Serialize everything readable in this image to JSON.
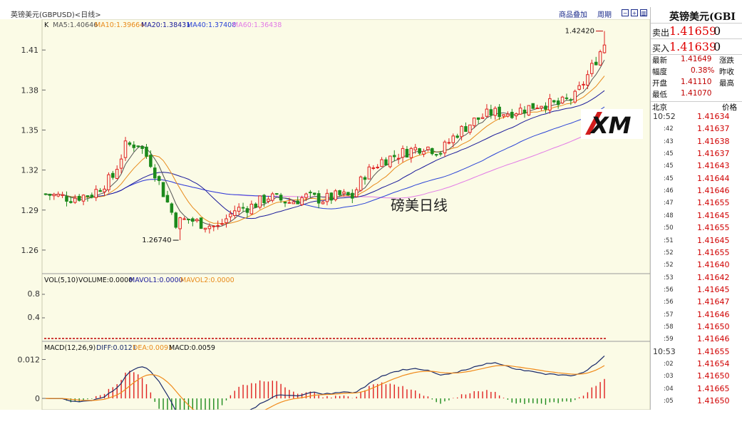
{
  "header": {
    "title": "英镑美元(GBPUSD)<日线>",
    "link_add": "商品叠加",
    "link_period": "周期"
  },
  "panel": {
    "title": "英镑美元(GBI",
    "sell_label": "卖出",
    "sell_price": "1.41659",
    "sell_vol": "0",
    "buy_label": "买入",
    "buy_price": "1.41639",
    "buy_vol": "0",
    "stats": [
      {
        "k": "最新",
        "v": "1.41649",
        "k2": "涨跌"
      },
      {
        "k": "幅度",
        "v": "0.38%",
        "k2": "昨收"
      },
      {
        "k": "开盘",
        "v": "1.41110",
        "k2": "最高"
      },
      {
        "k": "最低",
        "v": "1.41070",
        "k2": ""
      }
    ],
    "col_time": "北京",
    "col_price": "价格",
    "ticks": [
      {
        "t": "10:52",
        "p": "1.41634"
      },
      {
        "t": ":42",
        "p": "1.41637"
      },
      {
        "t": ":43",
        "p": "1.41638"
      },
      {
        "t": ":45",
        "p": "1.41637"
      },
      {
        "t": ":45",
        "p": "1.41643"
      },
      {
        "t": ":45",
        "p": "1.41644"
      },
      {
        "t": ":46",
        "p": "1.41646"
      },
      {
        "t": ":47",
        "p": "1.41655"
      },
      {
        "t": ":48",
        "p": "1.41645"
      },
      {
        "t": ":50",
        "p": "1.41655"
      },
      {
        "t": ":51",
        "p": "1.41645"
      },
      {
        "t": ":52",
        "p": "1.41655"
      },
      {
        "t": ":52",
        "p": "1.41640"
      },
      {
        "t": ":53",
        "p": "1.41642"
      },
      {
        "t": ":56",
        "p": "1.41645"
      },
      {
        "t": ":56",
        "p": "1.41647"
      },
      {
        "t": ":57",
        "p": "1.41646"
      },
      {
        "t": ":58",
        "p": "1.41650"
      },
      {
        "t": ":59",
        "p": "1.41646"
      },
      {
        "t": "10:53",
        "p": "1.41655"
      },
      {
        "t": ":02",
        "p": "1.41654"
      },
      {
        "t": ":03",
        "p": "1.41650"
      },
      {
        "t": ":04",
        "p": "1.41665"
      },
      {
        "t": ":05",
        "p": "1.41650"
      }
    ]
  },
  "chart_data": {
    "type": "candlestick",
    "watermark": "磅美日线",
    "logo_text": "XM",
    "price_panel": {
      "ma_header": {
        "k": "K",
        "ma5": "MA5:1.40646",
        "ma10": "MA10:1.39664",
        "ma20": "MA20:1.38431",
        "ma40": "MA40:1.37408",
        "ma60": "MA60:1.36438"
      },
      "yticks": [
        "1.41",
        "1.38",
        "1.35",
        "1.32",
        "1.29",
        "1.26"
      ],
      "ytick_values": [
        1.41,
        1.38,
        1.35,
        1.32,
        1.29,
        1.26
      ],
      "ylim": [
        1.245,
        1.432
      ],
      "annotation_high": "1.42420",
      "annotation_low": "1.26740",
      "high_index": 133,
      "low_index": 32,
      "anchors": [
        [
          0,
          1.302
        ],
        [
          6,
          1.299
        ],
        [
          11,
          1.302
        ],
        [
          16,
          1.315
        ],
        [
          19,
          1.338
        ],
        [
          22,
          1.34
        ],
        [
          25,
          1.326
        ],
        [
          28,
          1.303
        ],
        [
          31,
          1.281
        ],
        [
          34,
          1.283
        ],
        [
          37,
          1.28
        ],
        [
          41,
          1.277
        ],
        [
          45,
          1.29
        ],
        [
          49,
          1.293
        ],
        [
          53,
          1.3
        ],
        [
          58,
          1.296
        ],
        [
          62,
          1.3
        ],
        [
          66,
          1.298
        ],
        [
          70,
          1.301
        ],
        [
          73,
          1.3
        ],
        [
          76,
          1.317
        ],
        [
          80,
          1.327
        ],
        [
          85,
          1.333
        ],
        [
          90,
          1.338
        ],
        [
          94,
          1.334
        ],
        [
          98,
          1.348
        ],
        [
          102,
          1.357
        ],
        [
          106,
          1.363
        ],
        [
          110,
          1.363
        ],
        [
          114,
          1.366
        ],
        [
          118,
          1.37
        ],
        [
          122,
          1.369
        ],
        [
          126,
          1.375
        ],
        [
          129,
          1.391
        ],
        [
          133,
          1.415
        ]
      ],
      "ma_colors": {
        "ma5": "#555555",
        "ma10": "#e88a1a",
        "ma20": "#1a1a9a",
        "ma40": "#2b44d6",
        "ma60": "#e27ae6"
      }
    },
    "volume_panel": {
      "label": "VOL(5,10)",
      "volume": "VOLUME:0.0000",
      "mavol1": "MAVOL1:0.0000",
      "mavol2": "MAVOL2:0.0000",
      "yticks": [
        "0.8",
        "0.4"
      ],
      "ylim": [
        0,
        1.2
      ]
    },
    "macd_panel": {
      "label": "MACD(12,26,9)",
      "diff": "DIFF:0.0121",
      "dea": "DEA:0.0091",
      "macd": "MACD:0.0059",
      "yticks": [
        "0.012",
        "0"
      ],
      "ytick_values": [
        0.012,
        0
      ],
      "ylim": [
        -0.0035,
        0.0165
      ]
    },
    "colors": {
      "bg": "#fbfbe6",
      "up": "#e02020",
      "down": "#1c8a1c",
      "diff_line": "#1a2a6a",
      "dea_line": "#f08a1a"
    },
    "num_candles": 134
  }
}
